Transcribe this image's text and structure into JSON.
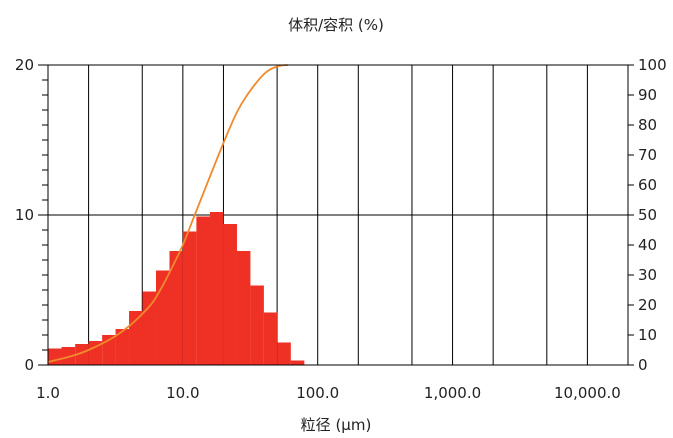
{
  "chart_data": {
    "type": "bar",
    "title": "体积/容积 (%)",
    "xlabel": "粒径 (μm)",
    "x_scale": "log",
    "xlim": [
      1,
      20000
    ],
    "x_ticks": [
      {
        "value": 1,
        "label": "1.0"
      },
      {
        "value": 10,
        "label": "10.0"
      },
      {
        "value": 100,
        "label": "100.0"
      },
      {
        "value": 1000,
        "label": "1,000.0"
      },
      {
        "value": 10000,
        "label": "10,000.0"
      }
    ],
    "ylim_left": [
      0,
      20
    ],
    "y_left_ticks": [
      "0",
      "10",
      "20"
    ],
    "ylim_right": [
      0,
      100
    ],
    "y_right_ticks": [
      "0",
      "10",
      "20",
      "30",
      "40",
      "50",
      "60",
      "70",
      "80",
      "90",
      "100"
    ],
    "grid": true,
    "colors": {
      "bars": "#ee3124",
      "curve": "#f08a2c",
      "grid": "#000000"
    },
    "series": [
      {
        "kind": "histogram",
        "axis": "left",
        "bins": [
          {
            "x0": 1.0,
            "x1": 1.26,
            "value": 1.1
          },
          {
            "x0": 1.26,
            "x1": 1.59,
            "value": 1.2
          },
          {
            "x0": 1.59,
            "x1": 2.0,
            "value": 1.4
          },
          {
            "x0": 2.0,
            "x1": 2.52,
            "value": 1.6
          },
          {
            "x0": 2.52,
            "x1": 3.17,
            "value": 2.0
          },
          {
            "x0": 3.17,
            "x1": 3.99,
            "value": 2.4
          },
          {
            "x0": 3.99,
            "x1": 5.02,
            "value": 3.6
          },
          {
            "x0": 5.02,
            "x1": 6.32,
            "value": 4.9
          },
          {
            "x0": 6.32,
            "x1": 7.96,
            "value": 6.3
          },
          {
            "x0": 7.96,
            "x1": 10.0,
            "value": 7.6
          },
          {
            "x0": 10.0,
            "x1": 12.6,
            "value": 8.9
          },
          {
            "x0": 12.6,
            "x1": 15.9,
            "value": 9.9
          },
          {
            "x0": 15.9,
            "x1": 20.0,
            "value": 10.2
          },
          {
            "x0": 20.0,
            "x1": 25.2,
            "value": 9.4
          },
          {
            "x0": 25.2,
            "x1": 31.7,
            "value": 7.6
          },
          {
            "x0": 31.7,
            "x1": 39.9,
            "value": 5.3
          },
          {
            "x0": 39.9,
            "x1": 50.2,
            "value": 3.5
          },
          {
            "x0": 50.2,
            "x1": 63.2,
            "value": 1.5
          },
          {
            "x0": 63.2,
            "x1": 79.6,
            "value": 0.3
          }
        ]
      },
      {
        "kind": "cumulative-line",
        "axis": "right",
        "points": [
          {
            "x": 1.0,
            "y": 1.0
          },
          {
            "x": 1.5,
            "y": 3.0
          },
          {
            "x": 2.0,
            "y": 5.0
          },
          {
            "x": 3.0,
            "y": 9.0
          },
          {
            "x": 4.0,
            "y": 13.0
          },
          {
            "x": 5.0,
            "y": 17.0
          },
          {
            "x": 6.0,
            "y": 21.0
          },
          {
            "x": 7.0,
            "y": 26.0
          },
          {
            "x": 8.0,
            "y": 31.0
          },
          {
            "x": 10.0,
            "y": 40.0
          },
          {
            "x": 12.0,
            "y": 49.0
          },
          {
            "x": 15.0,
            "y": 60.0
          },
          {
            "x": 20.0,
            "y": 74.0
          },
          {
            "x": 25.0,
            "y": 84.0
          },
          {
            "x": 30.0,
            "y": 90.0
          },
          {
            "x": 40.0,
            "y": 97.0
          },
          {
            "x": 50.0,
            "y": 99.5
          },
          {
            "x": 60.0,
            "y": 100.0
          }
        ]
      }
    ]
  }
}
